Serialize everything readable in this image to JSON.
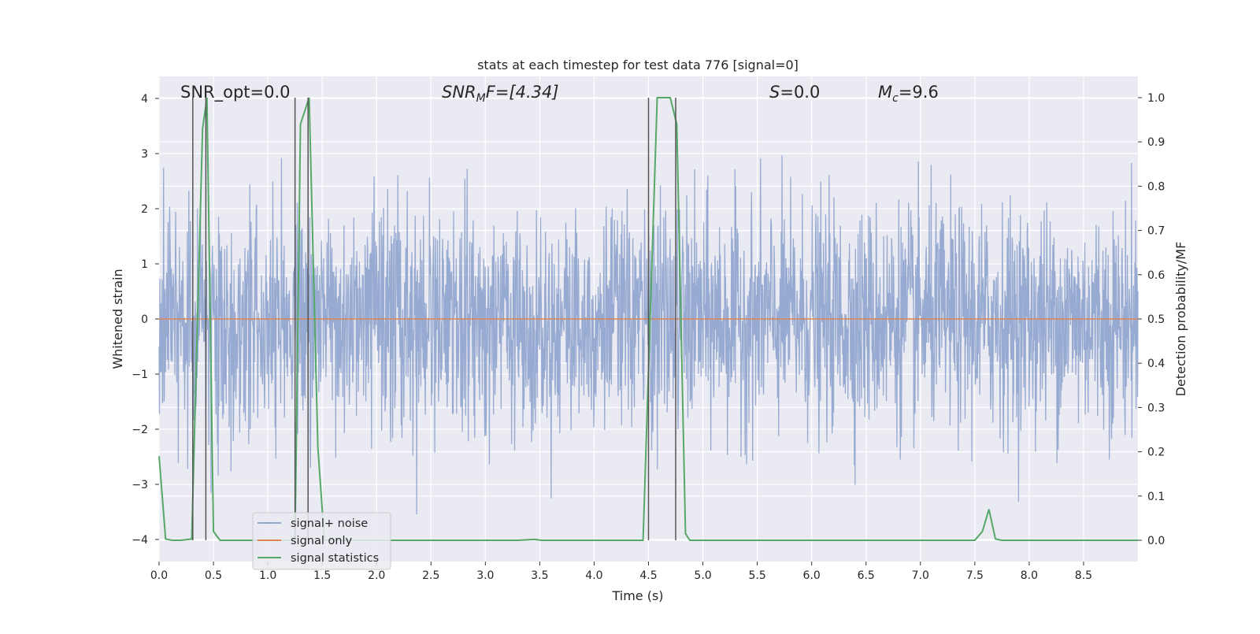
{
  "chart_data": {
    "type": "line",
    "title": "stats at each timestep for test data 776 [signal=0]",
    "xlabel": "Time (s)",
    "ylabel_left": "Whitened strain",
    "ylabel_right": "Detection probability/MF",
    "xlim": [
      0.0,
      9.0
    ],
    "ylim_left": [
      -4.4,
      4.4
    ],
    "ylim_right": [
      -0.048,
      1.048
    ],
    "x_ticks": [
      0.0,
      0.5,
      1.0,
      1.5,
      2.0,
      2.5,
      3.0,
      3.5,
      4.0,
      4.5,
      5.0,
      5.5,
      6.0,
      6.5,
      7.0,
      7.5,
      8.0,
      8.5
    ],
    "x_tick_labels": [
      "0.0",
      "0.5",
      "1.0",
      "1.5",
      "2.0",
      "2.5",
      "3.0",
      "3.5",
      "4.0",
      "4.5",
      "5.0",
      "5.5",
      "6.0",
      "6.5",
      "7.0",
      "7.5",
      "8.0",
      "8.5"
    ],
    "y_left_ticks": [
      4,
      3,
      2,
      1,
      0,
      -1,
      -2,
      -3,
      -4
    ],
    "y_left_tick_labels": [
      "4",
      "3",
      "2",
      "1",
      "0",
      "−1",
      "−2",
      "−3",
      "−4"
    ],
    "y_right_ticks": [
      1.0,
      0.9,
      0.8,
      0.7,
      0.6,
      0.5,
      0.4,
      0.3,
      0.2,
      0.1,
      0.0
    ],
    "y_right_tick_labels": [
      "1.0",
      "0.9",
      "0.8",
      "0.7",
      "0.6",
      "0.5",
      "0.4",
      "0.3",
      "0.2",
      "0.1",
      "0.0"
    ],
    "grid": true,
    "legend_position": "lower-left",
    "annotations": {
      "snr_opt": "SNR_opt=0.0",
      "snr_mf_main": "SNR",
      "snr_mf_sub": "M",
      "snr_mf_tail": "F=[4.34]",
      "s_main": "S",
      "s_tail": "=0.0",
      "mc_main": "M",
      "mc_sub": "c",
      "mc_tail": "=9.6"
    },
    "series": [
      {
        "name": "signal+ noise",
        "color": "#92a6cf",
        "description_type": "noise",
        "x_range": [
          0.0,
          9.0
        ],
        "std": 1.0,
        "approx_envelope": [
          -3.9,
          3.8
        ]
      },
      {
        "name": "signal only",
        "color": "#dd8452",
        "x": [
          0.0,
          9.0
        ],
        "y": [
          0.0,
          0.0
        ]
      },
      {
        "name": "signal statistics",
        "color": "#55a868",
        "axis": "right",
        "x": [
          0.0,
          0.06,
          0.12,
          0.2,
          0.3,
          0.4,
          0.44,
          0.5,
          0.56,
          1.0,
          1.2,
          1.25,
          1.3,
          1.38,
          1.46,
          1.52,
          1.56,
          1.6,
          2.0,
          3.0,
          3.3,
          3.45,
          3.52,
          4.0,
          4.4,
          4.45,
          4.58,
          4.7,
          4.76,
          4.84,
          4.88,
          5.0,
          6.0,
          7.0,
          7.5,
          7.57,
          7.63,
          7.69,
          7.75,
          8.0,
          9.0
        ],
        "y": [
          0.19,
          0.003,
          0.0,
          0.0,
          0.003,
          0.93,
          1.0,
          0.02,
          0.0,
          0.0,
          0.0,
          0.0,
          0.94,
          1.0,
          0.21,
          0.0,
          0.0,
          0.0,
          0.0,
          0.0,
          0.0,
          0.002,
          0.0,
          0.0,
          0.0,
          0.0,
          1.0,
          1.0,
          0.94,
          0.015,
          0.0,
          0.0,
          0.0,
          0.0,
          0.0,
          0.02,
          0.07,
          0.003,
          0.0,
          0.0,
          0.0
        ]
      }
    ],
    "vertical_markers": {
      "color": "#555555",
      "x": [
        0.31,
        0.43,
        1.25,
        1.37,
        4.5,
        4.75
      ]
    },
    "colors": {
      "plot_bg": "#eaeaf2",
      "grid": "#ffffff",
      "text": "#262626"
    }
  }
}
